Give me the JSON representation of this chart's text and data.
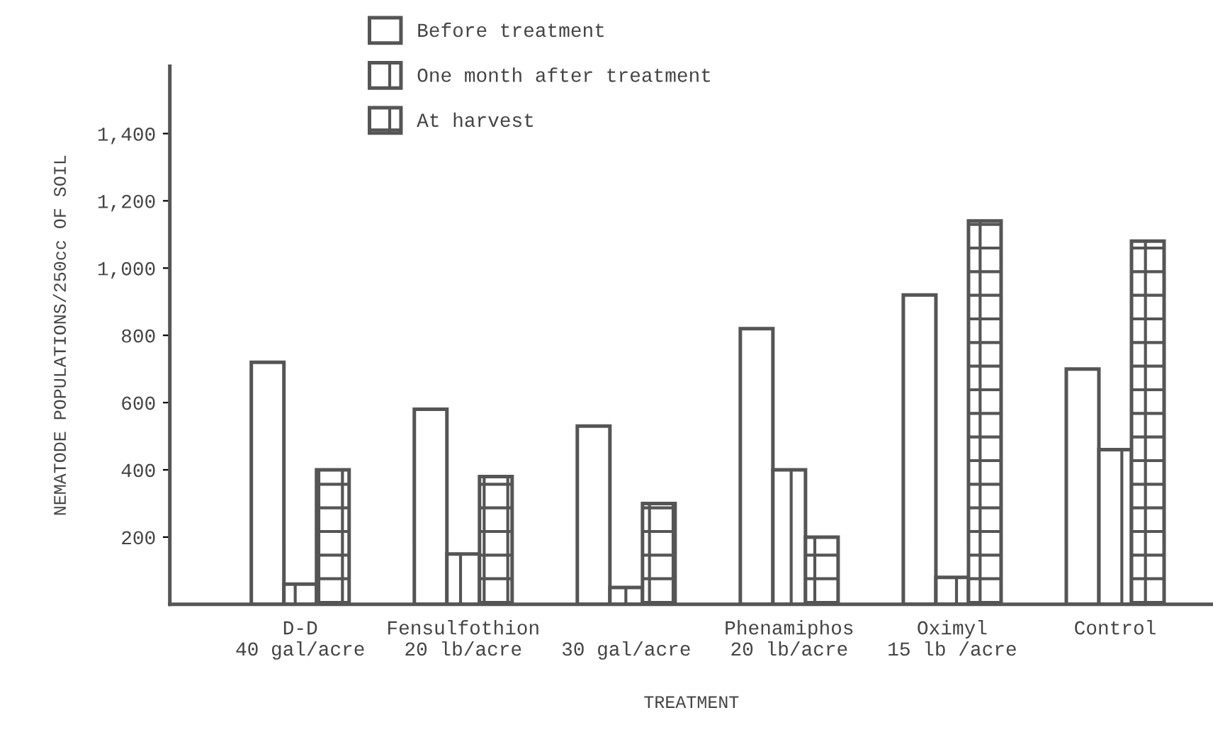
{
  "chart_data": {
    "type": "bar",
    "xlabel": "TREATMENT",
    "ylabel": "NEMATODE POPULATIONS/250cc OF SOIL",
    "categories": [
      "D-D\n40 gal/acre",
      "Fensulfothion\n20 lb/acre",
      "\n30 gal/acre",
      "Phenamiphos\n20 lb/acre",
      "Oximyl\n15 lb /acre",
      "Control\n"
    ],
    "series": [
      {
        "name": "Before treatment",
        "color": "#555555",
        "values": [
          720,
          580,
          530,
          820,
          920,
          700
        ]
      },
      {
        "name": "One month after treatment",
        "color": "#555555",
        "values": [
          60,
          150,
          50,
          400,
          80,
          460
        ]
      },
      {
        "name": "At harvest",
        "color": "#555555",
        "values": [
          400,
          380,
          300,
          200,
          1140,
          1080
        ]
      }
    ],
    "ylim": [
      0,
      1600
    ],
    "yticks": [
      {
        "value": 200,
        "label": "200"
      },
      {
        "value": 400,
        "label": "400"
      },
      {
        "value": 600,
        "label": "600"
      },
      {
        "value": 800,
        "label": "800"
      },
      {
        "value": 1000,
        "label": "1,000"
      },
      {
        "value": 1200,
        "label": "1,200"
      },
      {
        "value": 1400,
        "label": "1,400"
      }
    ],
    "legend": "top",
    "grid": false
  }
}
